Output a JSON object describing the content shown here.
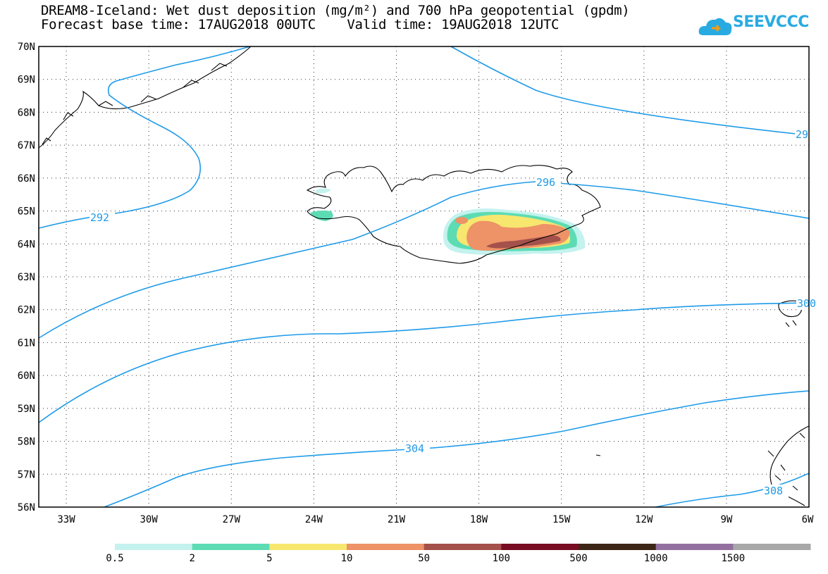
{
  "title": {
    "line1": "DREAM8-Iceland: Wet dust deposition (mg/m²) and 700 hPa geopotential (gpdm)",
    "line2": "Forecast base time: 17AUG2018 00UTC    Valid time: 19AUG2018 12UTC"
  },
  "logo": {
    "text": "SEEVCCC",
    "color": "#29abe2"
  },
  "map": {
    "lat_labels": [
      "70N",
      "69N",
      "68N",
      "67N",
      "66N",
      "65N",
      "64N",
      "63N",
      "62N",
      "61N",
      "60N",
      "59N",
      "58N",
      "57N",
      "56N"
    ],
    "lon_labels": [
      "33W",
      "30W",
      "27W",
      "24W",
      "21W",
      "18W",
      "15W",
      "12W",
      "9W",
      "6W"
    ],
    "grid": "dotted",
    "lat_range": [
      56,
      70
    ],
    "lon_range": [
      -34,
      -6
    ],
    "contour_color": "#1e9be8",
    "contour_labels": [
      "292",
      "296",
      "300",
      "304",
      "308",
      "29"
    ]
  },
  "legend": {
    "colors": [
      "#c4f2ee",
      "#5ddcb4",
      "#f7e76f",
      "#ee9267",
      "#a4514b",
      "#770c23",
      "#3d2616",
      "#936fa0",
      "#a8a8a8"
    ],
    "labels": [
      "0.5",
      "2",
      "5",
      "10",
      "50",
      "100",
      "500",
      "1000",
      "1500"
    ]
  }
}
